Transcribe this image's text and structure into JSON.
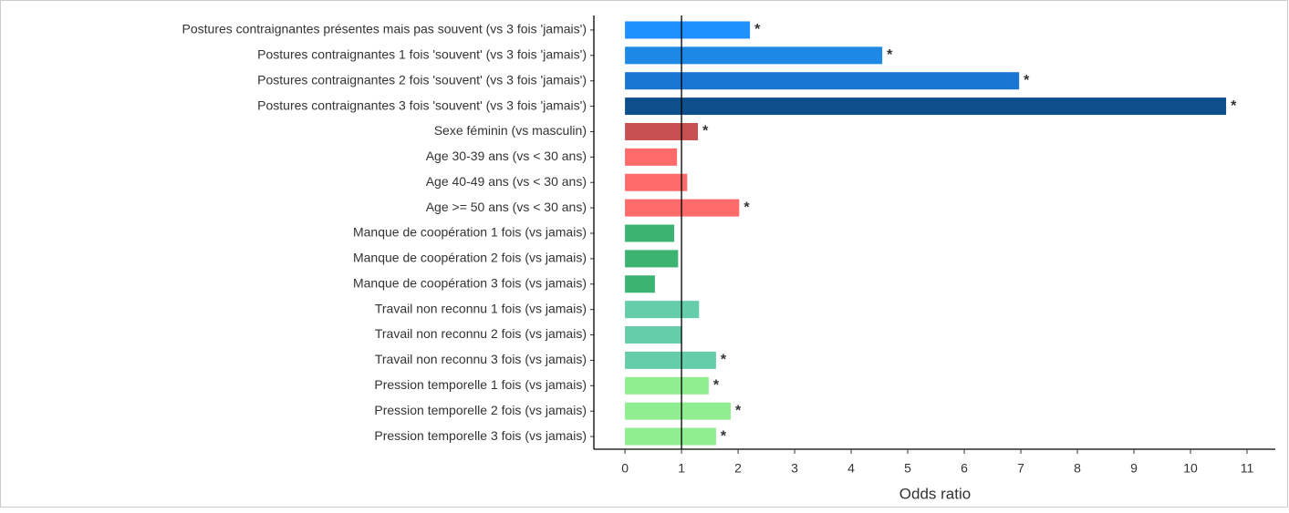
{
  "chart_data": {
    "type": "hbar",
    "categories": [
      "Postures contraignantes présentes mais pas souvent (vs 3 fois 'jamais')",
      "Postures contraignantes 1 fois 'souvent' (vs 3 fois 'jamais')",
      "Postures contraignantes 2 fois 'souvent' (vs 3 fois 'jamais')",
      "Postures contraignantes 3 fois 'souvent' (vs 3 fois 'jamais')",
      "Sexe féminin (vs masculin)",
      "Age 30-39 ans (vs < 30 ans)",
      "Age 40-49 ans (vs < 30 ans)",
      "Age >= 50 ans (vs < 30 ans)",
      "Manque de coopération 1 fois (vs jamais)",
      "Manque de coopération 2 fois (vs jamais)",
      "Manque de coopération 3 fois (vs jamais)",
      "Travail non reconnu 1 fois (vs jamais)",
      "Travail non reconnu 2 fois (vs jamais)",
      "Travail non reconnu 3 fois (vs jamais)",
      "Pression temporelle 1 fois (vs jamais)",
      "Pression temporelle 2 fois (vs jamais)",
      "Pression temporelle 3 fois (vs jamais)"
    ],
    "values": [
      2.21,
      4.55,
      6.97,
      10.63,
      1.29,
      0.92,
      1.1,
      2.02,
      0.87,
      0.94,
      0.53,
      1.31,
      1.0,
      1.61,
      1.48,
      1.87,
      1.61
    ],
    "colors": [
      "#1e90ff",
      "#1e88e5",
      "#1976d2",
      "#0d4f8b",
      "#c85050",
      "#ff6b6b",
      "#ff6b6b",
      "#ff6b6b",
      "#3cb371",
      "#3cb371",
      "#3cb371",
      "#66cdaa",
      "#66cdaa",
      "#66cdaa",
      "#90ee90",
      "#90ee90",
      "#90ee90"
    ],
    "annotations": [
      "*",
      "*",
      "*",
      "*",
      "*",
      null,
      null,
      "*",
      null,
      null,
      null,
      null,
      null,
      "*",
      "*",
      "*",
      "*"
    ],
    "reference_line": 1,
    "xlabel": "Odds ratio",
    "xlim": [
      -0.55,
      11.5
    ],
    "xticks": [
      0,
      1,
      2,
      3,
      4,
      5,
      6,
      7,
      8,
      9,
      10,
      11
    ]
  }
}
